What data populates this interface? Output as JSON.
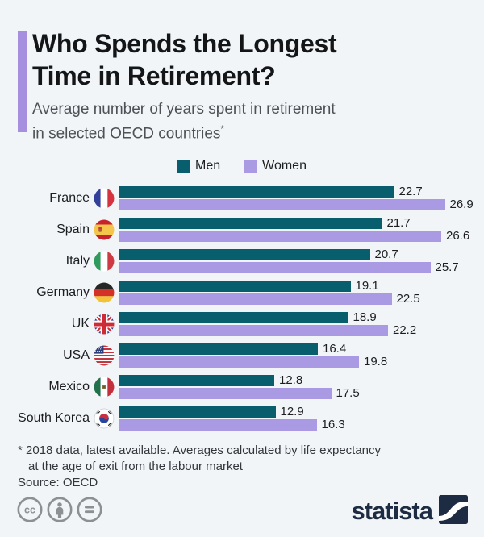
{
  "header": {
    "title_lines": [
      "Who Spends the Longest",
      "Time in Retirement?"
    ],
    "subtitle_line1": "Average number of years spent in retirement",
    "subtitle_line2": "in selected OECD countries",
    "footnote_marker": "*"
  },
  "chart_data": {
    "type": "bar",
    "orientation": "horizontal",
    "title": "Who Spends the Longest Time in Retirement?",
    "subtitle": "Average number of years spent in retirement in selected OECD countries*",
    "categories": [
      "France",
      "Spain",
      "Italy",
      "Germany",
      "UK",
      "USA",
      "Mexico",
      "South Korea"
    ],
    "flags": [
      "fr",
      "es",
      "it",
      "de",
      "uk",
      "us",
      "mx",
      "kr"
    ],
    "series": [
      {
        "name": "Men",
        "color": "#085e6c",
        "values": [
          22.7,
          21.7,
          20.7,
          19.1,
          18.9,
          16.4,
          12.8,
          12.9
        ]
      },
      {
        "name": "Women",
        "color": "#aa9ae4",
        "values": [
          26.9,
          26.6,
          25.7,
          22.5,
          22.2,
          19.8,
          17.5,
          16.3
        ]
      }
    ],
    "xlim": [
      0,
      27
    ],
    "unit": "years",
    "value_labels": true,
    "legend_position": "top",
    "grid": false
  },
  "footnotes": {
    "line1": "* 2018 data, latest available. Averages calculated by life expectancy",
    "line2": "at the age of exit from the labour market",
    "line3": "Source: OECD"
  },
  "footer": {
    "brand": "statista",
    "license_icons": [
      "cc",
      "attribution",
      "no-derivatives"
    ]
  },
  "colors": {
    "background": "#f2f5f8",
    "accent": "#a78fe0",
    "men": "#085e6c",
    "women": "#aa9ae4",
    "title": "#131517",
    "brand": "#1d2c42",
    "license_gray": "#8d9092"
  }
}
